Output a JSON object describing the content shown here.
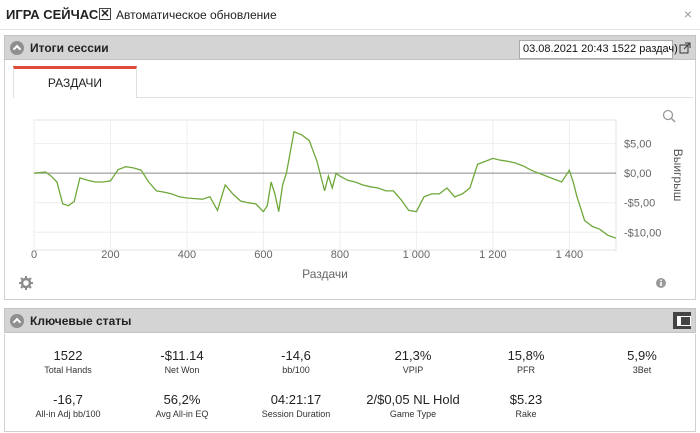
{
  "topbar": {
    "title": "ИГРА СЕЙЧАС",
    "auto_update_checked": true,
    "auto_update_label": "Автоматическое обновление",
    "close_glyph": "×"
  },
  "session": {
    "header": "Итоги сессии",
    "selected_session": "03.08.2021 20:43 1522 раздач)",
    "tab_label": "РАЗДАЧИ"
  },
  "chart_data": {
    "type": "line",
    "xlabel": "Раздачи",
    "ylabel": "Выигрыш",
    "xlim": [
      0,
      1522
    ],
    "ylim": [
      -13,
      9
    ],
    "x_ticks": [
      0,
      200,
      400,
      600,
      800,
      1000,
      1200,
      1400
    ],
    "x_tick_labels": [
      "0",
      "200",
      "400",
      "600",
      "800",
      "1 000",
      "1 200",
      "1 400"
    ],
    "y_ticks": [
      5,
      0,
      -5,
      -10
    ],
    "y_tick_labels": [
      "$5,00",
      "$0,00",
      "-$5,00",
      "-$10,00"
    ],
    "zero_line": true,
    "line_color": "#6fa83a",
    "series": [
      {
        "x": [
          0,
          30,
          45,
          60,
          75,
          90,
          105,
          120,
          140,
          160,
          180,
          200,
          220,
          240,
          260,
          280,
          300,
          320,
          340,
          360,
          380,
          400,
          420,
          440,
          460,
          480,
          500,
          520,
          540,
          560,
          580,
          600,
          610,
          620,
          630,
          640,
          650,
          660,
          680,
          700,
          720,
          740,
          760,
          770,
          780,
          790,
          800,
          820,
          840,
          860,
          880,
          900,
          920,
          940,
          960,
          980,
          1000,
          1020,
          1040,
          1060,
          1080,
          1100,
          1120,
          1140,
          1160,
          1180,
          1200,
          1220,
          1240,
          1260,
          1280,
          1300,
          1320,
          1340,
          1360,
          1380,
          1400,
          1410,
          1420,
          1430,
          1440,
          1460,
          1480,
          1500,
          1522
        ],
        "y": [
          0,
          0.2,
          -0.5,
          -1.5,
          -5.2,
          -5.5,
          -4.8,
          -0.8,
          -1.2,
          -1.5,
          -1.5,
          -1.3,
          0.6,
          1.1,
          0.9,
          0.5,
          -1.5,
          -3,
          -3.2,
          -3.5,
          -4,
          -4.2,
          -4.3,
          -4.4,
          -4,
          -6.3,
          -2,
          -3.5,
          -4.7,
          -5,
          -5.2,
          -6.5,
          -5.5,
          -1.5,
          -3.5,
          -6.5,
          -2,
          0,
          7,
          6.5,
          5.5,
          2,
          -3,
          -0.5,
          -2.5,
          0,
          -0.5,
          -1.2,
          -1.5,
          -2,
          -2.3,
          -2.5,
          -3,
          -3,
          -4.5,
          -6.3,
          -6.5,
          -4,
          -3.5,
          -3.5,
          -2.5,
          -4,
          -3.5,
          -2.5,
          1.5,
          2,
          2.5,
          2.2,
          2,
          1.7,
          1.2,
          0.5,
          0,
          -0.5,
          -1,
          -1.5,
          0.5,
          -1.5,
          -4,
          -6,
          -8,
          -9,
          -9.5,
          -10.5,
          -11
        ]
      }
    ]
  },
  "key_stats": {
    "header": "Ключевые статы",
    "rows": [
      [
        {
          "value": "1522",
          "label": "Total Hands"
        },
        {
          "value": "-$11.14",
          "label": "Net Won"
        },
        {
          "value": "-14,6",
          "label": "bb/100"
        },
        {
          "value": "21,3%",
          "label": "VPIP"
        },
        {
          "value": "15,8%",
          "label": "PFR"
        },
        {
          "value": "5,9%",
          "label": "3Bet"
        }
      ],
      [
        {
          "value": "-16,7",
          "label": "All-in Adj bb/100"
        },
        {
          "value": "56,2%",
          "label": "Avg All-in EQ"
        },
        {
          "value": "04:21:17",
          "label": "Session Duration"
        },
        {
          "value": "2/$0,05 NL Hold",
          "label": "Game Type"
        },
        {
          "value": "$5.23",
          "label": "Rake"
        }
      ]
    ]
  }
}
